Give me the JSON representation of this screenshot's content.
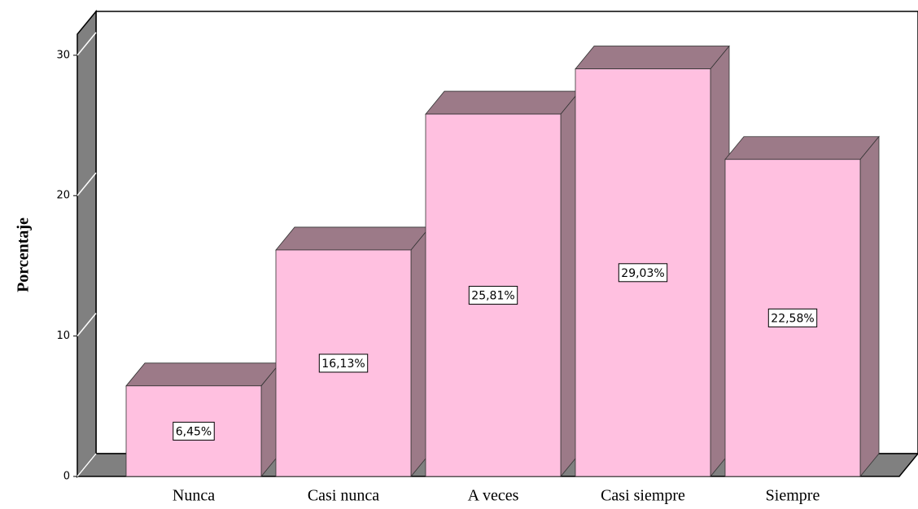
{
  "chart_data": {
    "type": "bar3d",
    "y_label": "Porcentaje",
    "categories": [
      "Nunca",
      "Casi nunca",
      "A veces",
      "Casi siempre",
      "Siempre"
    ],
    "values": [
      6.45,
      16.13,
      25.81,
      29.03,
      22.58
    ],
    "value_labels": [
      "6,45%",
      "16,13%",
      "25,81%",
      "29,03%",
      "22,58%"
    ],
    "color": "#ffc0e0",
    "shade_color": "#9c7a88",
    "wall_color": "#808080",
    "ylim": [
      0,
      31.5
    ],
    "yticks": [
      0,
      10,
      20,
      30
    ]
  }
}
